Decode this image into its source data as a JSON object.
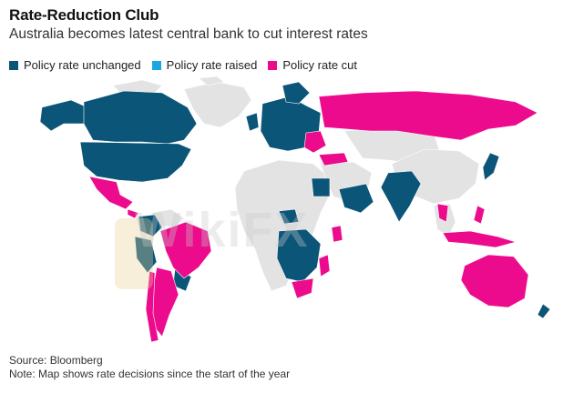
{
  "header": {
    "title": "Rate-Reduction Club",
    "subtitle": "Australia becomes latest central bank to cut interest rates"
  },
  "legend": {
    "items": [
      {
        "label": "Policy rate unchanged",
        "color": "#0b5578"
      },
      {
        "label": "Policy rate raised",
        "color": "#1aa7e0"
      },
      {
        "label": "Policy rate cut",
        "color": "#ec0b8c"
      }
    ]
  },
  "colors": {
    "unchanged": "#0b5578",
    "raised": "#1aa7e0",
    "cut": "#ec0b8c",
    "no_data": "#e3e3e3"
  },
  "map": {
    "regions": [
      {
        "name": "Canada",
        "status": "unchanged"
      },
      {
        "name": "United States",
        "status": "unchanged"
      },
      {
        "name": "Alaska",
        "status": "unchanged"
      },
      {
        "name": "Mexico",
        "status": "cut"
      },
      {
        "name": "Central America",
        "status": "cut"
      },
      {
        "name": "Greenland",
        "status": "no_data"
      },
      {
        "name": "Colombia",
        "status": "unchanged"
      },
      {
        "name": "Peru",
        "status": "unchanged"
      },
      {
        "name": "Brazil",
        "status": "cut"
      },
      {
        "name": "Chile",
        "status": "cut"
      },
      {
        "name": "Argentina",
        "status": "cut"
      },
      {
        "name": "Venezuela",
        "status": "no_data"
      },
      {
        "name": "Europe",
        "status": "unchanged"
      },
      {
        "name": "Eastern Europe",
        "status": "cut"
      },
      {
        "name": "Russia",
        "status": "cut"
      },
      {
        "name": "Turkey",
        "status": "cut"
      },
      {
        "name": "Egypt",
        "status": "unchanged"
      },
      {
        "name": "Saudi Arabia",
        "status": "unchanged"
      },
      {
        "name": "India",
        "status": "unchanged"
      },
      {
        "name": "China",
        "status": "no_data"
      },
      {
        "name": "Japan",
        "status": "unchanged"
      },
      {
        "name": "Philippines",
        "status": "cut"
      },
      {
        "name": "Indonesia",
        "status": "cut"
      },
      {
        "name": "Thailand",
        "status": "cut"
      },
      {
        "name": "Australia",
        "status": "cut"
      },
      {
        "name": "New Zealand",
        "status": "unchanged"
      },
      {
        "name": "Southern Africa",
        "status": "unchanged"
      },
      {
        "name": "South Africa",
        "status": "cut"
      },
      {
        "name": "Mozambique",
        "status": "cut"
      },
      {
        "name": "Kenya",
        "status": "cut"
      }
    ]
  },
  "watermark": {
    "text": "WikiFX"
  },
  "footer": {
    "source": "Source: Bloomberg",
    "note": "Note: Map shows rate decisions since the start of the year"
  }
}
